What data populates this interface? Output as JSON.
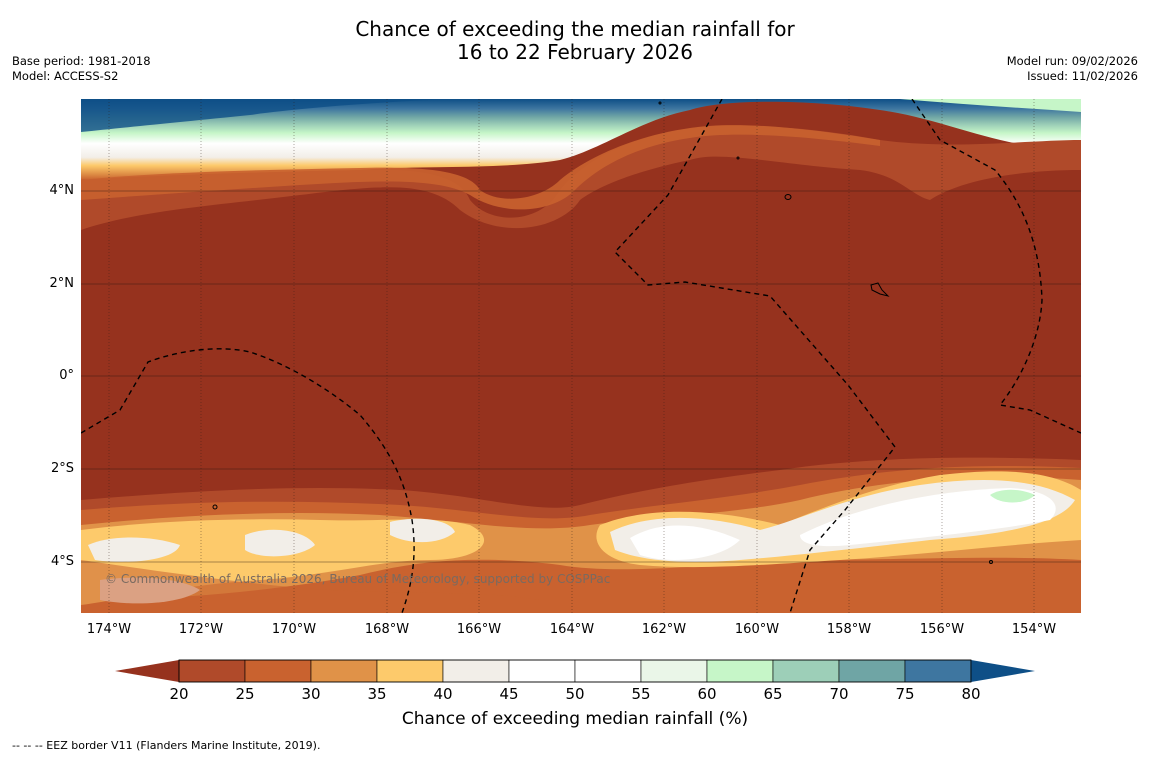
{
  "header": {
    "title_line1": "Chance of exceeding the median rainfall for",
    "title_line2": "16 to 22 February 2026",
    "base_period": "Base period: 1981-2018",
    "model": "Model: ACCESS-S2",
    "model_run": "Model run: 09/02/2026",
    "issued": "Issued: 11/02/2026"
  },
  "map": {
    "lat_labels": [
      "4°N",
      "2°N",
      "0°",
      "2°S",
      "4°S"
    ],
    "lon_labels": [
      "174°W",
      "172°W",
      "170°W",
      "168°W",
      "166°W",
      "164°W",
      "162°W",
      "160°W",
      "158°W",
      "156°W",
      "154°W"
    ],
    "copyright": "© Commonwealth of Australia 2026, Bureau of Meteorology, supported by COSPPac"
  },
  "colorbar": {
    "title": "Chance of exceeding median rainfall (%)",
    "ticks": [
      "20",
      "25",
      "30",
      "35",
      "40",
      "45",
      "50",
      "55",
      "60",
      "65",
      "70",
      "75",
      "80"
    ],
    "colors": [
      "#96321e",
      "#b04a2a",
      "#c9622f",
      "#e09248",
      "#fdca6b",
      "#f2eee8",
      "#ffffff",
      "#ffffff",
      "#eaf6e8",
      "#c6f6c8",
      "#9dcfb8",
      "#6fa5a5",
      "#3e76a0",
      "#0e4f87"
    ]
  },
  "footnote": "--  --  -- EEZ border V11 (Flanders Marine Institute, 2019)."
}
